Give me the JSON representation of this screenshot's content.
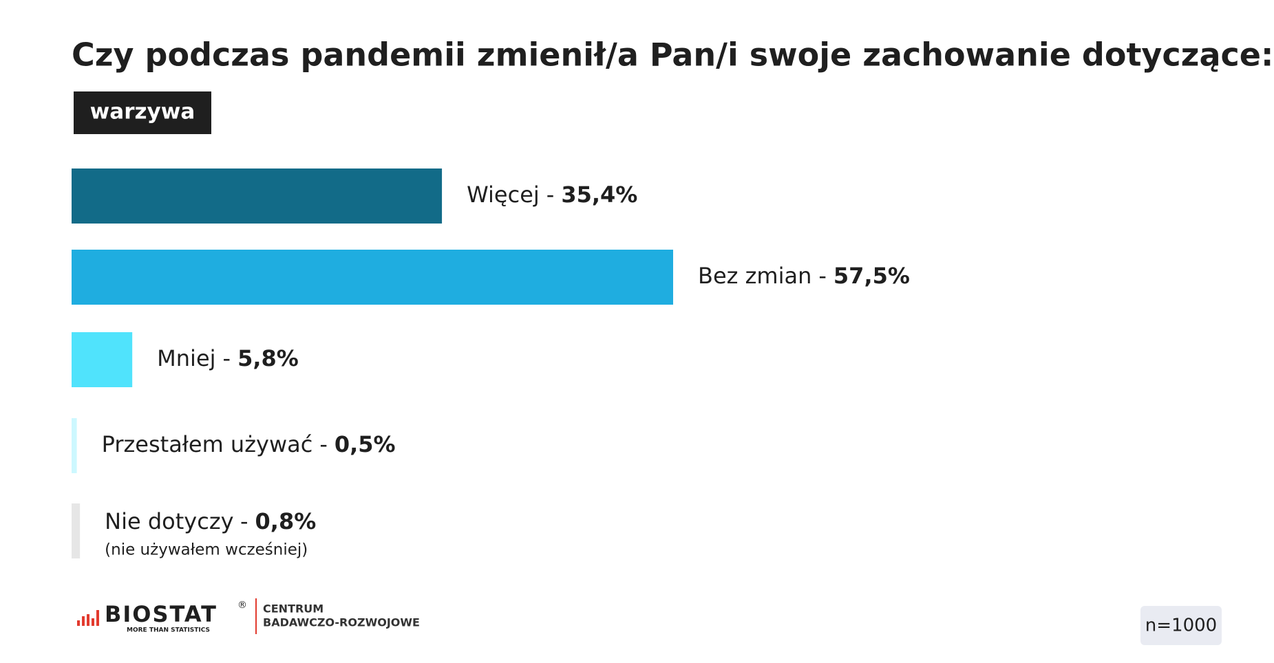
{
  "chart_data": {
    "type": "bar",
    "orientation": "horizontal",
    "title": "Czy podczas pandemii zmienił/a Pan/i swoje zachowanie dotyczące:",
    "subtitle": "warzywa",
    "categories": [
      "Więcej",
      "Bez zmian",
      "Mniej",
      "Przestałem używać",
      "Nie dotyczy"
    ],
    "separator": "-",
    "values": [
      35.4,
      57.5,
      5.8,
      0.5,
      0.8
    ],
    "value_labels": [
      "35,4%",
      "57,5%",
      "5,8%",
      "0,5%",
      "0,8%"
    ],
    "notes": [
      null,
      null,
      null,
      null,
      "(nie używałem wcześniej)"
    ],
    "colors": [
      "#126b88",
      "#1fade0",
      "#50e3fc",
      "#cdf8ff",
      "#e6e6e6"
    ],
    "xlim": [
      0,
      100
    ]
  },
  "footer": {
    "logo": "BIOSTAT",
    "registered": "®",
    "tagline": "MORE THAN STATISTICS",
    "center_line1": "CENTRUM",
    "center_line2": "BADAWCZO-ROZWOJOWE",
    "sample": "n=1000"
  }
}
